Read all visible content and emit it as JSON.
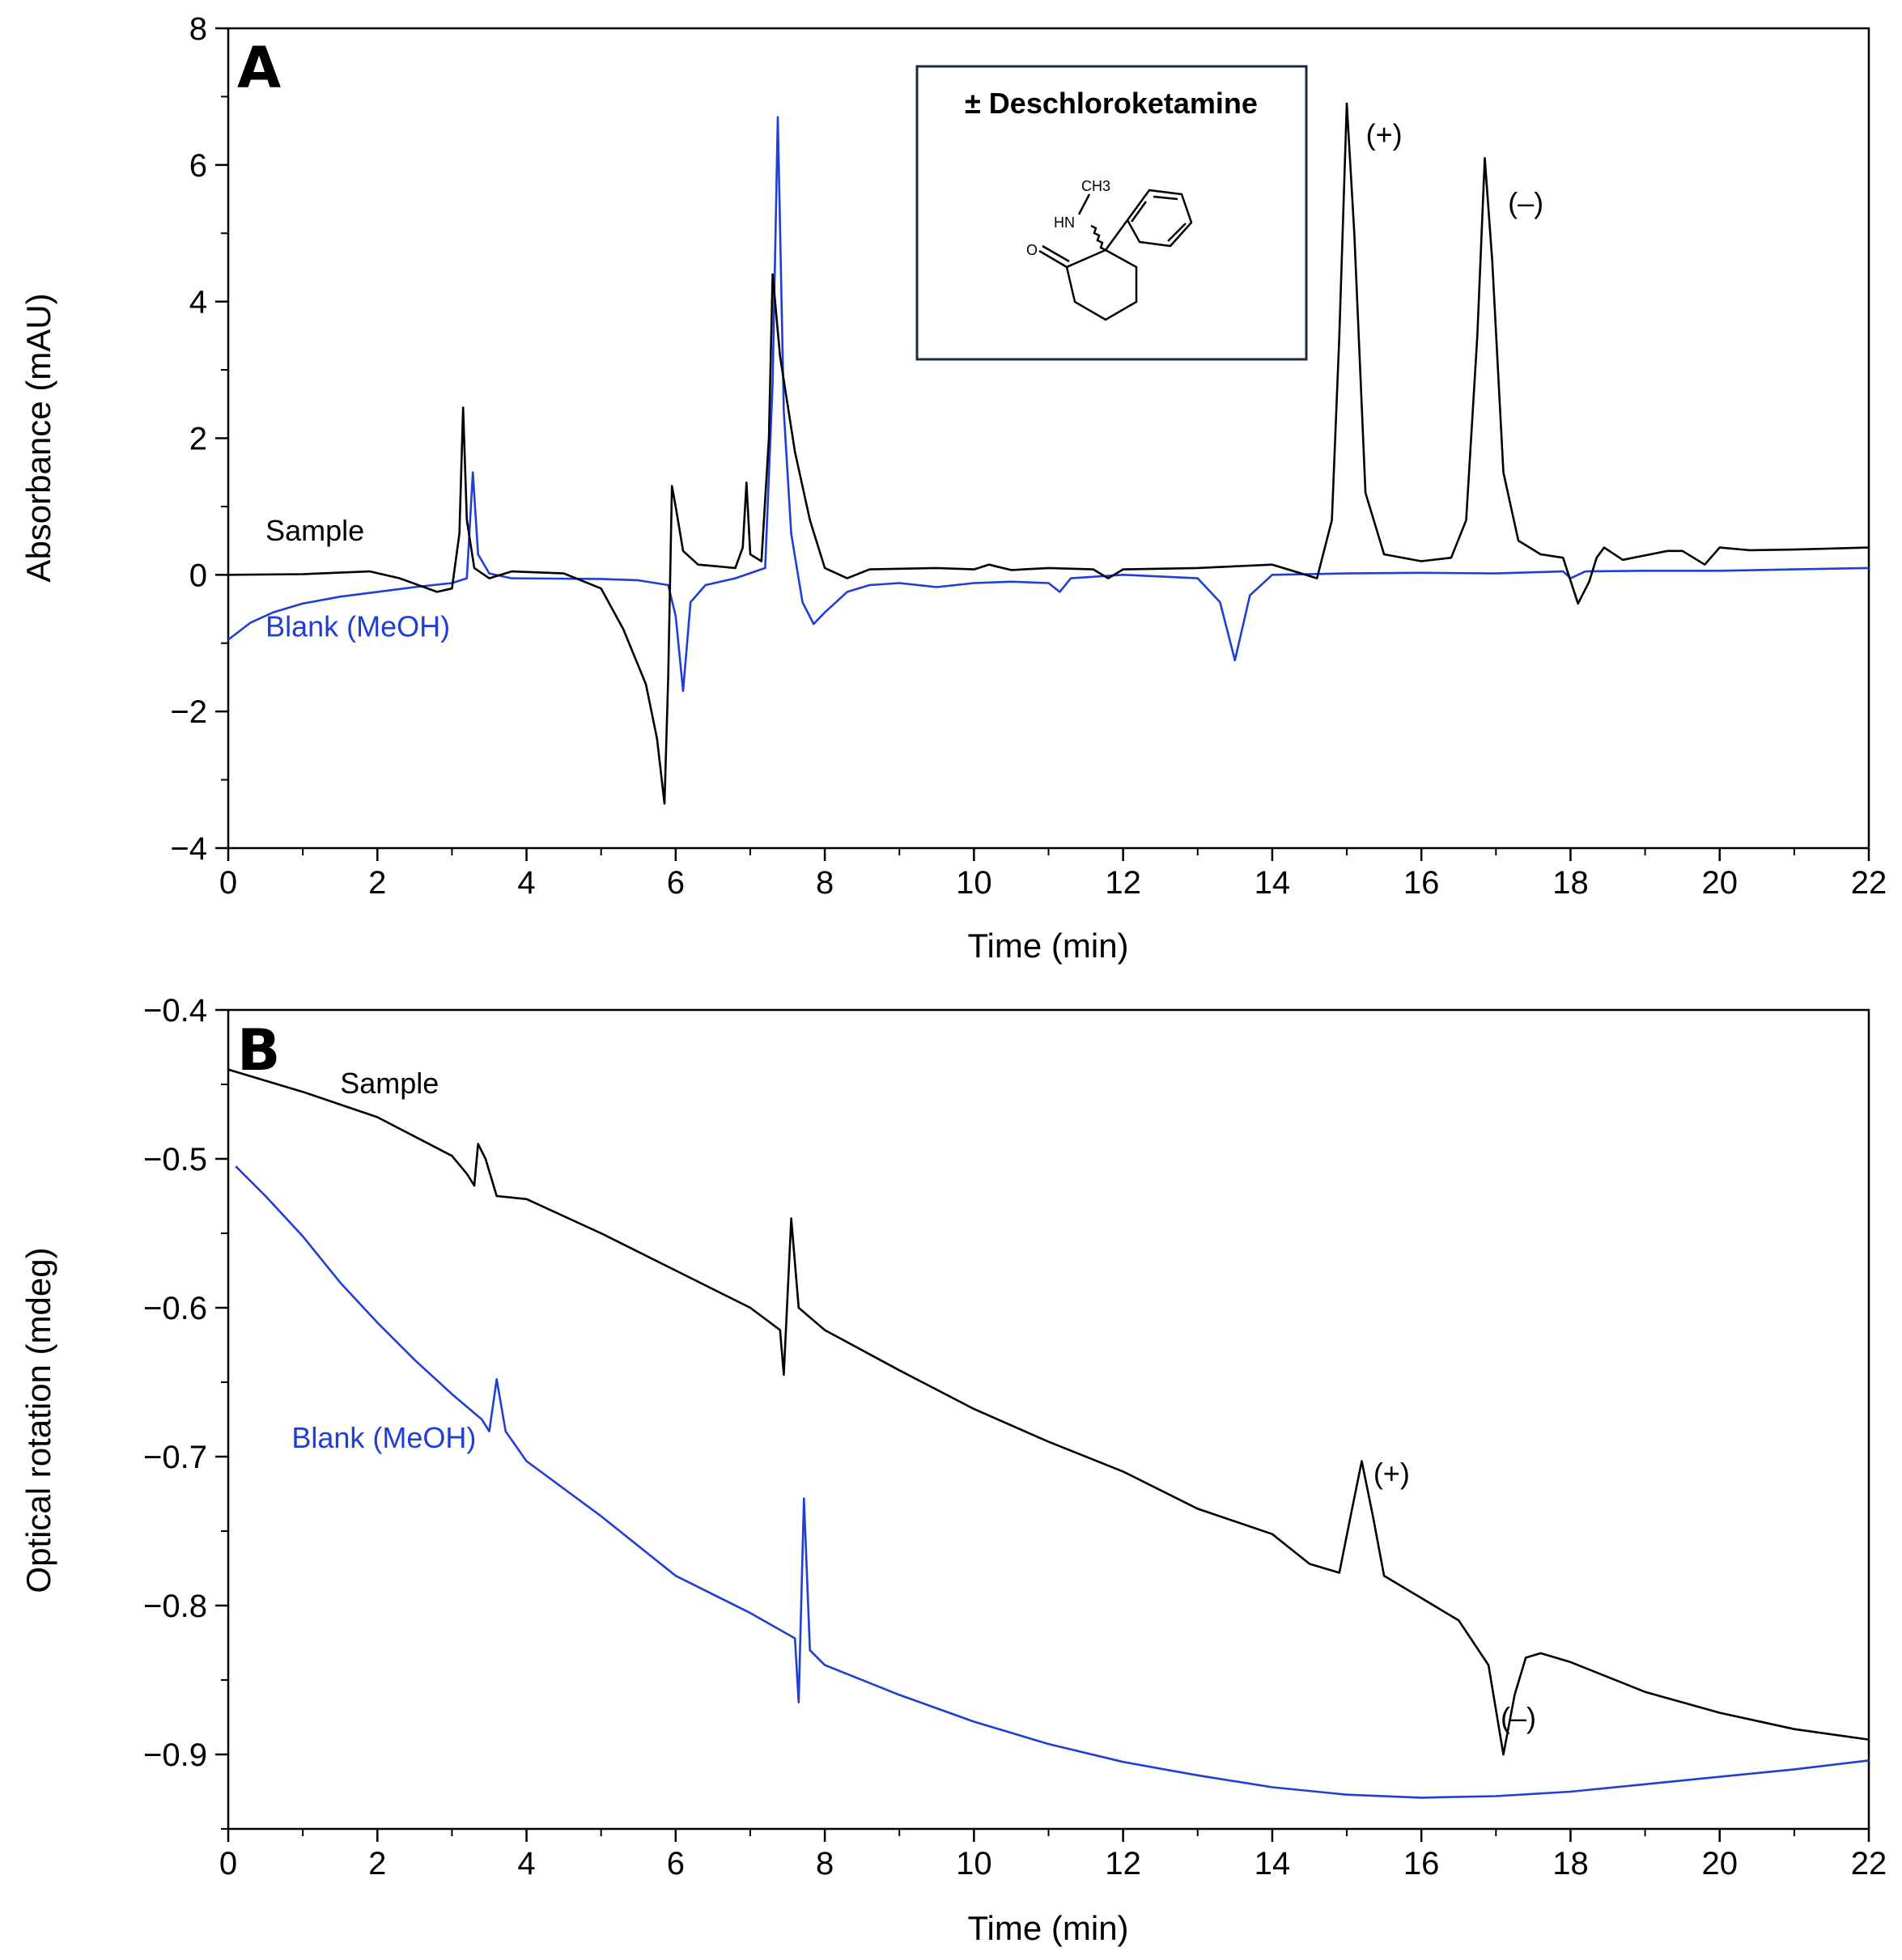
{
  "colors": {
    "sample": "#000000",
    "blank": "#1f3fd4",
    "axis": "#000000"
  },
  "chart_data": [
    {
      "type": "line",
      "panel": "A",
      "xlabel": "Time (min)",
      "ylabel": "Absorbance (mAU)",
      "xlim": [
        0,
        22
      ],
      "ylim": [
        -4,
        8
      ],
      "xticks": [
        0,
        2,
        4,
        6,
        8,
        10,
        12,
        14,
        16,
        18,
        20,
        22
      ],
      "yticks": [
        -4,
        -2,
        0,
        2,
        4,
        6,
        8
      ],
      "ytick_labels": [
        "−4",
        "−2",
        "0",
        "2",
        "4",
        "6",
        "8"
      ],
      "inset": {
        "title": "± Deschloroketamine",
        "atoms": {
          "methyl": "CH3",
          "amine": "HN",
          "oxygen": "O"
        }
      },
      "annotations": [
        {
          "text": "(+)",
          "x": 15.5,
          "y": 6.3
        },
        {
          "text": "(–)",
          "x": 17.4,
          "y": 5.3
        }
      ],
      "series": [
        {
          "name": "Sample",
          "label_pos": [
            0.5,
            0.5
          ],
          "points": [
            [
              0,
              0
            ],
            [
              1,
              0.01
            ],
            [
              1.9,
              0.05
            ],
            [
              2.3,
              -0.05
            ],
            [
              2.8,
              -0.25
            ],
            [
              3.0,
              -0.2
            ],
            [
              3.1,
              0.6
            ],
            [
              3.15,
              2.45
            ],
            [
              3.2,
              0.8
            ],
            [
              3.3,
              0.1
            ],
            [
              3.5,
              -0.05
            ],
            [
              3.8,
              0.05
            ],
            [
              4.5,
              0.02
            ],
            [
              5.0,
              -0.2
            ],
            [
              5.3,
              -0.8
            ],
            [
              5.6,
              -1.6
            ],
            [
              5.75,
              -2.4
            ],
            [
              5.85,
              -3.35
            ],
            [
              5.9,
              -1.5
            ],
            [
              5.95,
              1.3
            ],
            [
              6.0,
              1.0
            ],
            [
              6.1,
              0.35
            ],
            [
              6.3,
              0.15
            ],
            [
              6.8,
              0.1
            ],
            [
              6.9,
              0.4
            ],
            [
              6.95,
              1.35
            ],
            [
              7.0,
              0.3
            ],
            [
              7.15,
              0.2
            ],
            [
              7.25,
              2.0
            ],
            [
              7.3,
              4.4
            ],
            [
              7.4,
              3.2
            ],
            [
              7.6,
              1.8
            ],
            [
              7.8,
              0.8
            ],
            [
              8.0,
              0.1
            ],
            [
              8.3,
              -0.05
            ],
            [
              8.6,
              0.08
            ],
            [
              9.5,
              0.1
            ],
            [
              10.0,
              0.08
            ],
            [
              10.2,
              0.15
            ],
            [
              10.5,
              0.07
            ],
            [
              11.0,
              0.1
            ],
            [
              11.6,
              0.08
            ],
            [
              11.8,
              -0.05
            ],
            [
              12.0,
              0.08
            ],
            [
              13.0,
              0.1
            ],
            [
              14.0,
              0.15
            ],
            [
              14.3,
              0.05
            ],
            [
              14.6,
              -0.05
            ],
            [
              14.8,
              0.8
            ],
            [
              14.9,
              3.5
            ],
            [
              15.0,
              6.9
            ],
            [
              15.1,
              5.0
            ],
            [
              15.25,
              1.2
            ],
            [
              15.5,
              0.3
            ],
            [
              16.0,
              0.2
            ],
            [
              16.4,
              0.25
            ],
            [
              16.6,
              0.8
            ],
            [
              16.75,
              3.5
            ],
            [
              16.85,
              6.1
            ],
            [
              16.95,
              4.6
            ],
            [
              17.1,
              1.5
            ],
            [
              17.3,
              0.5
            ],
            [
              17.6,
              0.3
            ],
            [
              17.9,
              0.25
            ],
            [
              18.1,
              -0.42
            ],
            [
              18.25,
              -0.1
            ],
            [
              18.35,
              0.25
            ],
            [
              18.45,
              0.4
            ],
            [
              18.7,
              0.22
            ],
            [
              19.3,
              0.35
            ],
            [
              19.5,
              0.35
            ],
            [
              19.8,
              0.15
            ],
            [
              20.0,
              0.4
            ],
            [
              20.4,
              0.36
            ],
            [
              21.0,
              0.37
            ],
            [
              22.0,
              0.4
            ]
          ]
        },
        {
          "name": "Blank (MeOH)",
          "label_pos": [
            0.5,
            -0.9
          ],
          "points": [
            [
              0,
              -0.95
            ],
            [
              0.3,
              -0.7
            ],
            [
              0.6,
              -0.55
            ],
            [
              1.0,
              -0.42
            ],
            [
              1.5,
              -0.32
            ],
            [
              2.0,
              -0.25
            ],
            [
              2.5,
              -0.18
            ],
            [
              3.0,
              -0.12
            ],
            [
              3.2,
              -0.05
            ],
            [
              3.28,
              1.5
            ],
            [
              3.35,
              0.3
            ],
            [
              3.5,
              0.02
            ],
            [
              3.8,
              -0.05
            ],
            [
              5.0,
              -0.06
            ],
            [
              5.5,
              -0.08
            ],
            [
              5.9,
              -0.15
            ],
            [
              6.0,
              -0.6
            ],
            [
              6.1,
              -1.7
            ],
            [
              6.2,
              -0.4
            ],
            [
              6.4,
              -0.15
            ],
            [
              6.8,
              -0.05
            ],
            [
              7.2,
              0.1
            ],
            [
              7.3,
              2.8
            ],
            [
              7.37,
              6.7
            ],
            [
              7.45,
              2.4
            ],
            [
              7.55,
              0.6
            ],
            [
              7.7,
              -0.4
            ],
            [
              7.85,
              -0.72
            ],
            [
              8.0,
              -0.55
            ],
            [
              8.3,
              -0.25
            ],
            [
              8.6,
              -0.15
            ],
            [
              9.0,
              -0.12
            ],
            [
              9.5,
              -0.18
            ],
            [
              10.0,
              -0.12
            ],
            [
              10.5,
              -0.1
            ],
            [
              11.0,
              -0.12
            ],
            [
              11.15,
              -0.25
            ],
            [
              11.3,
              -0.05
            ],
            [
              12.0,
              0.0
            ],
            [
              13.0,
              -0.05
            ],
            [
              13.3,
              -0.4
            ],
            [
              13.5,
              -1.25
            ],
            [
              13.7,
              -0.3
            ],
            [
              14.0,
              0.0
            ],
            [
              15.0,
              0.02
            ],
            [
              16.0,
              0.03
            ],
            [
              17.0,
              0.02
            ],
            [
              17.9,
              0.05
            ],
            [
              18.0,
              -0.05
            ],
            [
              18.2,
              0.05
            ],
            [
              19.0,
              0.06
            ],
            [
              20.0,
              0.06
            ],
            [
              21.0,
              0.08
            ],
            [
              22.0,
              0.1
            ]
          ]
        }
      ]
    },
    {
      "type": "line",
      "panel": "B",
      "xlabel": "Time (min)",
      "ylabel": "Optical rotation (mdeg)",
      "xlim": [
        0,
        22
      ],
      "ylim": [
        -0.95,
        -0.4
      ],
      "xticks": [
        0,
        2,
        4,
        6,
        8,
        10,
        12,
        14,
        16,
        18,
        20,
        22
      ],
      "yticks": [
        -0.9,
        -0.8,
        -0.7,
        -0.6,
        -0.5,
        -0.4
      ],
      "ytick_labels": [
        "−0.9",
        "−0.8",
        "−0.7",
        "−0.6",
        "−0.5",
        "−0.4"
      ],
      "annotations": [
        {
          "text": "(+)",
          "x": 15.6,
          "y": -0.718
        },
        {
          "text": "(–)",
          "x": 17.3,
          "y": -0.882
        }
      ],
      "series": [
        {
          "name": "Sample",
          "label_pos": [
            1.5,
            -0.456
          ],
          "points": [
            [
              0,
              -0.44
            ],
            [
              1.0,
              -0.455
            ],
            [
              2.0,
              -0.472
            ],
            [
              3.0,
              -0.498
            ],
            [
              3.2,
              -0.51
            ],
            [
              3.3,
              -0.518
            ],
            [
              3.35,
              -0.49
            ],
            [
              3.45,
              -0.5
            ],
            [
              3.6,
              -0.525
            ],
            [
              4.0,
              -0.527
            ],
            [
              5.0,
              -0.55
            ],
            [
              6.0,
              -0.575
            ],
            [
              7.0,
              -0.6
            ],
            [
              7.4,
              -0.615
            ],
            [
              7.45,
              -0.645
            ],
            [
              7.55,
              -0.54
            ],
            [
              7.65,
              -0.6
            ],
            [
              8.0,
              -0.615
            ],
            [
              9.0,
              -0.642
            ],
            [
              10.0,
              -0.668
            ],
            [
              11.0,
              -0.69
            ],
            [
              12.0,
              -0.71
            ],
            [
              13.0,
              -0.735
            ],
            [
              14.0,
              -0.752
            ],
            [
              14.5,
              -0.772
            ],
            [
              14.9,
              -0.778
            ],
            [
              15.05,
              -0.74
            ],
            [
              15.2,
              -0.703
            ],
            [
              15.35,
              -0.74
            ],
            [
              15.5,
              -0.78
            ],
            [
              16.0,
              -0.795
            ],
            [
              16.5,
              -0.81
            ],
            [
              16.9,
              -0.84
            ],
            [
              17.0,
              -0.87
            ],
            [
              17.1,
              -0.9
            ],
            [
              17.25,
              -0.86
            ],
            [
              17.4,
              -0.835
            ],
            [
              17.6,
              -0.832
            ],
            [
              18.0,
              -0.838
            ],
            [
              19.0,
              -0.858
            ],
            [
              20.0,
              -0.872
            ],
            [
              21.0,
              -0.883
            ],
            [
              22.0,
              -0.89
            ]
          ]
        },
        {
          "name": "Blank (MeOH)",
          "label_pos": [
            0.85,
            -0.694
          ],
          "points": [
            [
              0.1,
              -0.505
            ],
            [
              0.5,
              -0.525
            ],
            [
              1.0,
              -0.552
            ],
            [
              1.5,
              -0.583
            ],
            [
              2.0,
              -0.61
            ],
            [
              2.5,
              -0.635
            ],
            [
              3.0,
              -0.658
            ],
            [
              3.4,
              -0.675
            ],
            [
              3.5,
              -0.683
            ],
            [
              3.6,
              -0.648
            ],
            [
              3.72,
              -0.683
            ],
            [
              4.0,
              -0.703
            ],
            [
              5.0,
              -0.74
            ],
            [
              6.0,
              -0.78
            ],
            [
              7.0,
              -0.805
            ],
            [
              7.6,
              -0.822
            ],
            [
              7.65,
              -0.865
            ],
            [
              7.72,
              -0.728
            ],
            [
              7.8,
              -0.83
            ],
            [
              8.0,
              -0.84
            ],
            [
              9.0,
              -0.86
            ],
            [
              10.0,
              -0.878
            ],
            [
              11.0,
              -0.893
            ],
            [
              12.0,
              -0.905
            ],
            [
              13.0,
              -0.914
            ],
            [
              14.0,
              -0.922
            ],
            [
              15.0,
              -0.927
            ],
            [
              16.0,
              -0.929
            ],
            [
              17.0,
              -0.928
            ],
            [
              18.0,
              -0.925
            ],
            [
              19.0,
              -0.92
            ],
            [
              20.0,
              -0.915
            ],
            [
              21.0,
              -0.91
            ],
            [
              22.0,
              -0.904
            ]
          ]
        }
      ]
    }
  ]
}
